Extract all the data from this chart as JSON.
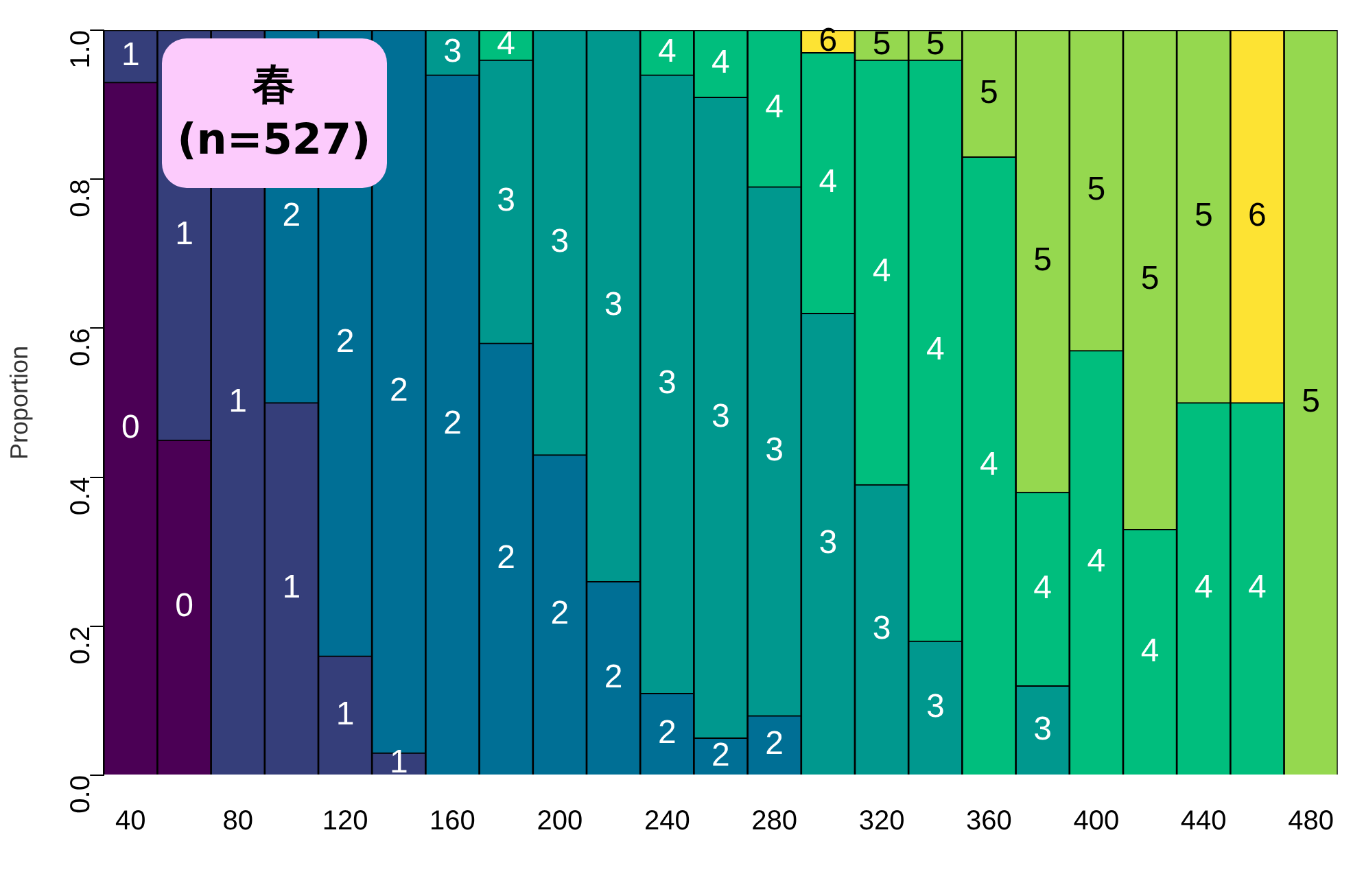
{
  "chart_data": {
    "type": "bar",
    "stacked": true,
    "ylabel": "Proportion",
    "annotations": [
      "春\n(n=527)"
    ],
    "categories": [
      "40",
      null,
      "80",
      null,
      "120",
      null,
      "160",
      null,
      "200",
      null,
      "240",
      null,
      "280",
      null,
      "320",
      null,
      "360",
      null,
      "400",
      null,
      "440",
      null,
      "480"
    ],
    "ylim": [
      0,
      1
    ],
    "yticks": [
      {
        "value": 0,
        "label": "0.0"
      },
      {
        "value": 0.2,
        "label": "0.2"
      },
      {
        "value": 0.4,
        "label": "0.4"
      },
      {
        "value": 0.6,
        "label": "0.6"
      },
      {
        "value": 0.8,
        "label": "0.8"
      },
      {
        "value": 1,
        "label": "1.0"
      }
    ],
    "grid": false,
    "legend": false,
    "series": [
      {
        "name": "0",
        "color": "#4b0055",
        "values": [
          0.93,
          0.45,
          0,
          0,
          0,
          0,
          0,
          0,
          0,
          0,
          0,
          0,
          0,
          0,
          0,
          0,
          0,
          0,
          0,
          0,
          0,
          0,
          0
        ]
      },
      {
        "name": "1",
        "color": "#353e7a",
        "values": [
          0.07,
          0.55,
          1,
          0.5,
          0.16,
          0.03,
          0,
          0,
          0,
          0,
          0,
          0,
          0,
          0,
          0,
          0,
          0,
          0,
          0,
          0,
          0,
          0,
          0
        ]
      },
      {
        "name": "2",
        "color": "#006f95",
        "values": [
          0,
          0,
          0,
          0.5,
          0.84,
          0.97,
          0.94,
          0.58,
          0.43,
          0.26,
          0.11,
          0.05,
          0.08,
          0,
          0,
          0,
          0,
          0,
          0,
          0,
          0,
          0,
          0
        ]
      },
      {
        "name": "3",
        "color": "#00988e",
        "values": [
          0,
          0,
          0,
          0,
          0,
          0,
          0.06,
          0.38,
          0.57,
          0.74,
          0.83,
          0.86,
          0.71,
          0.62,
          0.39,
          0.18,
          0,
          0.12,
          0,
          0,
          0,
          0,
          0
        ]
      },
      {
        "name": "4",
        "color": "#00be7d",
        "values": [
          0,
          0,
          0,
          0,
          0,
          0,
          0,
          0.04,
          0,
          0,
          0.06,
          0.09,
          0.21,
          0.35,
          0.57,
          0.78,
          0.83,
          0.26,
          0.57,
          0.33,
          0.5,
          0.5,
          0
        ]
      },
      {
        "name": "5",
        "color": "#95d84f",
        "values": [
          0,
          0,
          0,
          0,
          0,
          0,
          0,
          0,
          0,
          0,
          0,
          0,
          0,
          0,
          0.04,
          0.04,
          0.17,
          0.62,
          0.43,
          0.67,
          0.5,
          0,
          1
        ]
      },
      {
        "name": "6",
        "color": "#fde333",
        "values": [
          0,
          0,
          0,
          0,
          0,
          0,
          0,
          0,
          0,
          0,
          0,
          0,
          0,
          0.03,
          0,
          0,
          0,
          0,
          0,
          0,
          0,
          0.5,
          0
        ]
      }
    ]
  }
}
